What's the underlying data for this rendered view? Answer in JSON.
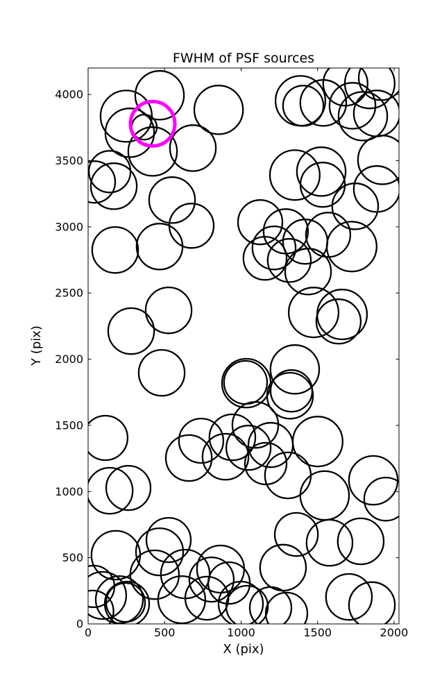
{
  "figure": {
    "title": "FWHM of PSF sources",
    "xlabel": "X (pix)",
    "ylabel": "Y (pix)",
    "background_color": "#ffffff",
    "axis_color": "#000000",
    "source_color": "#000000",
    "highlight_color": "#ff00ff"
  },
  "chart_data": {
    "type": "scatter",
    "title": "FWHM of PSF sources",
    "xlabel": "X (pix)",
    "ylabel": "Y (pix)",
    "xlim": [
      0,
      2032
    ],
    "ylim": [
      0,
      4200
    ],
    "xticks": [
      0,
      500,
      1000,
      1500,
      2000
    ],
    "yticks": [
      0,
      500,
      1000,
      1500,
      2000,
      2500,
      3000,
      3500,
      4000
    ],
    "grid": false,
    "legend": "none",
    "marker": "open-circle, radius proportional to source FWHM",
    "series": [
      {
        "name": "psf_sources",
        "color": "#000000",
        "linewidth": 2.3,
        "points": [
          [
            467,
            3994,
            159
          ],
          [
            249,
            3836,
            168
          ],
          [
            272,
            3711,
            159
          ],
          [
            367,
            3753,
            82
          ],
          [
            422,
            3569,
            159
          ],
          [
            853,
            3884,
            159
          ],
          [
            685,
            3595,
            150
          ],
          [
            141,
            3417,
            136
          ],
          [
            168,
            3307,
            150
          ],
          [
            41,
            3339,
            136
          ],
          [
            549,
            3202,
            150
          ],
          [
            676,
            3008,
            145
          ],
          [
            177,
            2825,
            150
          ],
          [
            467,
            2851,
            150
          ],
          [
            1388,
            3952,
            163
          ],
          [
            1406,
            3915,
            132
          ],
          [
            1682,
            4083,
            145
          ],
          [
            1841,
            4083,
            163
          ],
          [
            1914,
            4125,
            145
          ],
          [
            1728,
            3915,
            150
          ],
          [
            1796,
            3836,
            159
          ],
          [
            1887,
            3857,
            150
          ],
          [
            1537,
            3936,
            150
          ],
          [
            1351,
            3391,
            163
          ],
          [
            1524,
            3417,
            159
          ],
          [
            1533,
            3318,
            145
          ],
          [
            1923,
            3506,
            159
          ],
          [
            1887,
            3286,
            150
          ],
          [
            1746,
            3155,
            150
          ],
          [
            1125,
            3035,
            145
          ],
          [
            1292,
            2966,
            145
          ],
          [
            1215,
            2841,
            141
          ],
          [
            1419,
            2888,
            145
          ],
          [
            1569,
            2940,
            145
          ],
          [
            1723,
            2851,
            163
          ],
          [
            1315,
            2746,
            141
          ],
          [
            1156,
            2762,
            141
          ],
          [
            1438,
            2662,
            150
          ],
          [
            1474,
            2353,
            163
          ],
          [
            1660,
            2338,
            163
          ],
          [
            1637,
            2285,
            145
          ],
          [
            526,
            2369,
            150
          ],
          [
            281,
            2212,
            150
          ],
          [
            481,
            1897,
            150
          ],
          [
            113,
            1405,
            145
          ],
          [
            1034,
            1819,
            159
          ],
          [
            1029,
            1824,
            141
          ],
          [
            1351,
            1923,
            159
          ],
          [
            1329,
            1761,
            136
          ],
          [
            1320,
            1724,
            150
          ],
          [
            1093,
            1504,
            150
          ],
          [
            943,
            1410,
            150
          ],
          [
            739,
            1384,
            145
          ],
          [
            1501,
            1378,
            163
          ],
          [
            898,
            1263,
            150
          ],
          [
            658,
            1253,
            150
          ],
          [
            1048,
            1331,
            145
          ],
          [
            1193,
            1352,
            145
          ],
          [
            1161,
            1211,
            136
          ],
          [
            1306,
            1122,
            150
          ],
          [
            1546,
            970,
            159
          ],
          [
            1864,
            1085,
            159
          ],
          [
            1946,
            943,
            141
          ],
          [
            1361,
            676,
            141
          ],
          [
            1578,
            613,
            150
          ],
          [
            1782,
            624,
            150
          ],
          [
            1274,
            425,
            150
          ],
          [
            1705,
            204,
            150
          ],
          [
            1855,
            142,
            150
          ],
          [
            866,
            414,
            154
          ],
          [
            921,
            309,
            136
          ],
          [
            807,
            335,
            145
          ],
          [
            776,
            194,
            141
          ],
          [
            998,
            152,
            145
          ],
          [
            1039,
            131,
            136
          ],
          [
            1193,
            121,
            136
          ],
          [
            1297,
            79,
            136
          ],
          [
            181,
            519,
            159
          ],
          [
            36,
            283,
            136
          ],
          [
            95,
            215,
            154
          ],
          [
            204,
            183,
            154
          ],
          [
            254,
            152,
            145
          ],
          [
            245,
            162,
            127
          ],
          [
            30,
            95,
            136
          ],
          [
            467,
            545,
            154
          ],
          [
            435,
            372,
            159
          ],
          [
            635,
            377,
            159
          ],
          [
            612,
            183,
            154
          ],
          [
            526,
            634,
            145
          ],
          [
            263,
            1027,
            145
          ],
          [
            141,
            1006,
            150
          ]
        ]
      },
      {
        "name": "highlighted_source",
        "color": "#ff00ff",
        "linewidth": 5,
        "points": [
          [
            422,
            3779,
            145
          ]
        ]
      }
    ]
  }
}
